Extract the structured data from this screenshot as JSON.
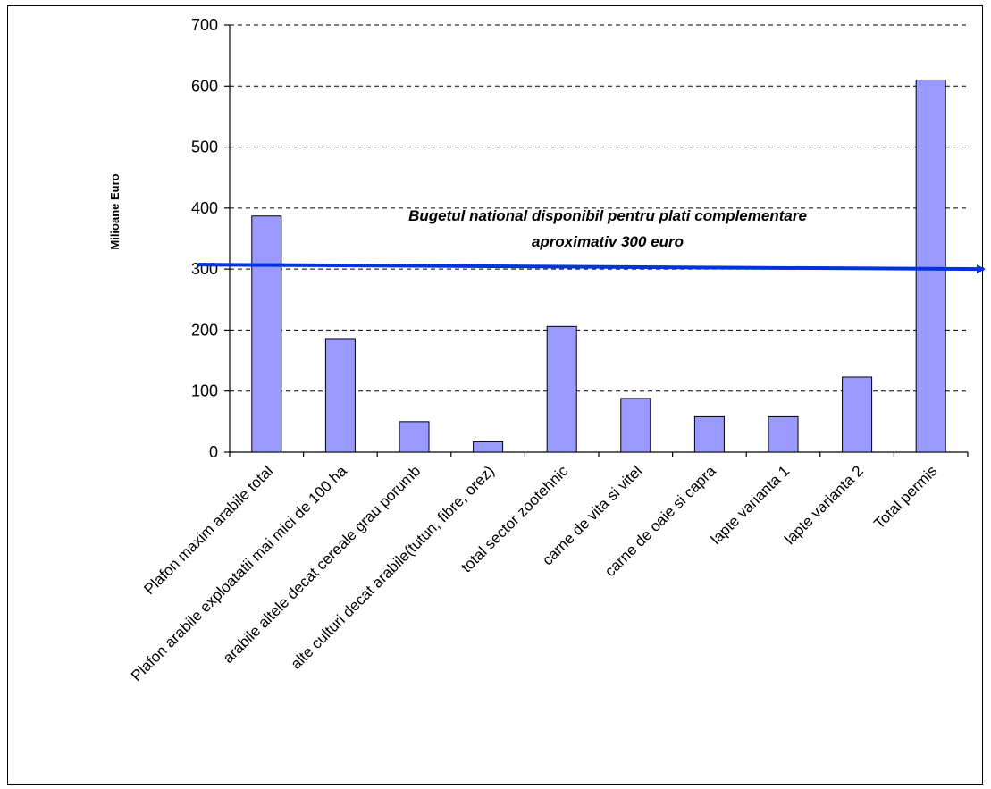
{
  "chart_data": {
    "type": "bar",
    "title": "",
    "xlabel": "",
    "ylabel": "Milioane Euro",
    "ylim": [
      0,
      700
    ],
    "yticks": [
      0,
      100,
      200,
      300,
      400,
      500,
      600,
      700
    ],
    "grid": true,
    "legend": "none",
    "categories": [
      "Plafon maxim arabile total",
      "Plafon arabile exploatatii mai mici de 100 ha",
      "arabile altele decat cereale grau porumb",
      "alte culturi decat arabile(tutun, fibre, orez)",
      "total sector zootehnic",
      "carne de vita si vitel",
      "carne de oaie si capra",
      "lapte varianta 1",
      "lapte varianta 2",
      "Total permis"
    ],
    "values": [
      387,
      186,
      50,
      17,
      206,
      88,
      58,
      58,
      123,
      610
    ],
    "reference_line": {
      "value": 300,
      "label_line1": "Bugetul national disponibil pentru plati complementare",
      "label_line2": "aproximativ 300 euro",
      "color": "#0033dd"
    },
    "bar_color": "#9999ff",
    "bar_edge_color": "#000000",
    "grid_color": "#000000"
  }
}
